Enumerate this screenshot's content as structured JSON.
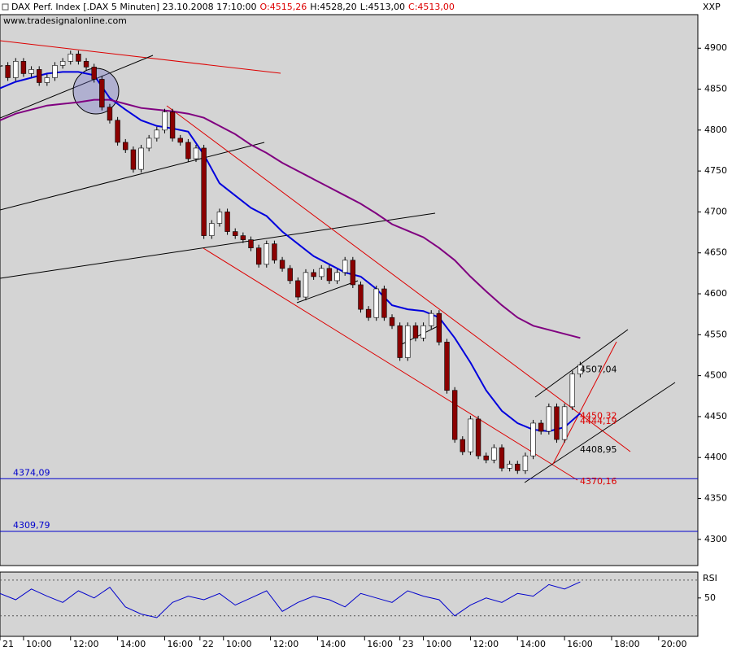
{
  "chart_data": {
    "type": "candlestick",
    "header": {
      "title": "DAX Perf. Index [.DAX  5 Minuten] 23.10.2008 17:10:00",
      "open": "O:4515,26",
      "high": "H:4528,20",
      "low": "L:4513,00",
      "close": "C:4513,00",
      "source": "www.tradesignalonline.com",
      "corner": "XXP"
    },
    "x": [
      0,
      4,
      8,
      12,
      16,
      20,
      24,
      28,
      32,
      36,
      40,
      44,
      48,
      52,
      56,
      60,
      64,
      68,
      72,
      76,
      80,
      84,
      88,
      92,
      96,
      100,
      104,
      108,
      112,
      116,
      120,
      124,
      128,
      132,
      136,
      140,
      144,
      148,
      152,
      156,
      160,
      164,
      168,
      172,
      176,
      180,
      184,
      188,
      192,
      196,
      200,
      204,
      208,
      212,
      216,
      220,
      224,
      228,
      232,
      236,
      240,
      244,
      248,
      252,
      256,
      260,
      264,
      268,
      272,
      276,
      280,
      284,
      288,
      292,
      296
    ],
    "values": [
      4879,
      4864,
      4884,
      4869,
      4874,
      4858,
      4864,
      4879,
      4884,
      4893,
      4884,
      4877,
      4862,
      4828,
      4812,
      4785,
      4776,
      4752,
      4778,
      4790,
      4800,
      4822,
      4790,
      4785,
      4765,
      4778,
      4671,
      4686,
      4700,
      4676,
      4671,
      4666,
      4656,
      4636,
      4661,
      4641,
      4631,
      4616,
      4596,
      4626,
      4621,
      4631,
      4616,
      4626,
      4641,
      4611,
      4581,
      4571,
      4606,
      4571,
      4561,
      4522,
      4561,
      4546,
      4561,
      4576,
      4541,
      4482,
      4422,
      4407,
      4447,
      4402,
      4397,
      4412,
      4387,
      4392,
      4384,
      4402,
      4442,
      4432,
      4462,
      4422,
      4462,
      4502,
      4513
    ],
    "up_color": "#ffffff",
    "down_color": "#8b0000",
    "overlays": [
      {
        "color": "#0000dd",
        "x": [
          0,
          8,
          16,
          24,
          32,
          40,
          48,
          56,
          64,
          72,
          80,
          88,
          96,
          104,
          112,
          120,
          128,
          136,
          144,
          152,
          160,
          168,
          176,
          184,
          192,
          200,
          208,
          216,
          224,
          232,
          240,
          248,
          256,
          264,
          272,
          280,
          288,
          296
        ],
        "values": [
          4851,
          4859,
          4864,
          4869,
          4871,
          4871,
          4867,
          4839,
          4825,
          4812,
          4805,
          4802,
          4798,
          4770,
          4735,
          4720,
          4705,
          4695,
          4676,
          4661,
          4646,
          4636,
          4626,
          4621,
          4606,
          4586,
          4581,
          4579,
          4571,
          4546,
          4516,
          4482,
          4457,
          4442,
          4434,
          4432,
          4437,
          4454
        ]
      },
      {
        "color": "#800080",
        "x": [
          0,
          8,
          16,
          24,
          32,
          40,
          48,
          56,
          64,
          72,
          80,
          88,
          96,
          104,
          112,
          120,
          128,
          136,
          144,
          152,
          160,
          168,
          176,
          184,
          192,
          200,
          208,
          216,
          224,
          232,
          240,
          248,
          256,
          264,
          272,
          280,
          288,
          296
        ],
        "values": [
          4812,
          4820,
          4825,
          4830,
          4832,
          4834,
          4837,
          4837,
          4832,
          4827,
          4825,
          4823,
          4820,
          4815,
          4805,
          4795,
          4782,
          4772,
          4760,
          4750,
          4740,
          4730,
          4720,
          4710,
          4698,
          4685,
          4677,
          4669,
          4656,
          4641,
          4621,
          4603,
          4586,
          4571,
          4561,
          4556,
          4551,
          4546
        ]
      }
    ],
    "hlines": [
      {
        "value": 4374.09,
        "label": "4374,09"
      },
      {
        "value": 4309.79,
        "label": "4309,79"
      }
    ],
    "hline_color": "#0000cc",
    "annotations": [
      {
        "value": 4507.04,
        "label": "4507,04",
        "color": "#000000"
      },
      {
        "value": 4444.19,
        "label": "4444,19",
        "color": "#dd0000"
      },
      {
        "value": 4450.32,
        "label": "4450,32",
        "color": "#dd0000"
      },
      {
        "value": 4408.95,
        "label": "4408,95",
        "color": "#000000"
      },
      {
        "value": 4370.16,
        "label": "4370,16",
        "color": "#dd0000"
      }
    ],
    "xlim": [
      0,
      356
    ],
    "ylim": [
      4268,
      4941
    ],
    "yticks": [
      4300,
      4350,
      4400,
      4450,
      4500,
      4550,
      4600,
      4650,
      4700,
      4750,
      4800,
      4850,
      4900
    ],
    "xticks": [
      {
        "value": 0,
        "label": "21"
      },
      {
        "value": 12,
        "label": "10:00"
      },
      {
        "value": 36,
        "label": "12:00"
      },
      {
        "value": 60,
        "label": "14:00"
      },
      {
        "value": 84,
        "label": "16:00"
      },
      {
        "value": 102,
        "label": "22"
      },
      {
        "value": 114,
        "label": "10:00"
      },
      {
        "value": 138,
        "label": "12:00"
      },
      {
        "value": 162,
        "label": "14:00"
      },
      {
        "value": 186,
        "label": "16:00"
      },
      {
        "value": 204,
        "label": "23"
      },
      {
        "value": 216,
        "label": "10:00"
      },
      {
        "value": 240,
        "label": "12:00"
      },
      {
        "value": 264,
        "label": "14:00"
      },
      {
        "value": 288,
        "label": "16:00"
      },
      {
        "value": 312,
        "label": "18:00"
      },
      {
        "value": 336,
        "label": "20:00"
      }
    ],
    "rsi": {
      "label": "RSI",
      "color": "#0000cc",
      "ylim": [
        7,
        79
      ],
      "yticks": [
        50
      ],
      "levels": [
        30,
        70
      ],
      "x": [
        0,
        8,
        16,
        24,
        32,
        40,
        48,
        56,
        64,
        72,
        80,
        88,
        96,
        104,
        112,
        120,
        128,
        136,
        144,
        152,
        160,
        168,
        176,
        184,
        192,
        200,
        208,
        216,
        224,
        232,
        240,
        248,
        256,
        264,
        272,
        280,
        288,
        296
      ],
      "values": [
        55,
        48,
        60,
        52,
        45,
        58,
        50,
        62,
        40,
        32,
        28,
        45,
        52,
        48,
        55,
        42,
        50,
        58,
        35,
        45,
        52,
        48,
        40,
        55,
        50,
        45,
        58,
        52,
        48,
        30,
        42,
        50,
        45,
        55,
        52,
        65,
        60,
        68
      ]
    }
  }
}
